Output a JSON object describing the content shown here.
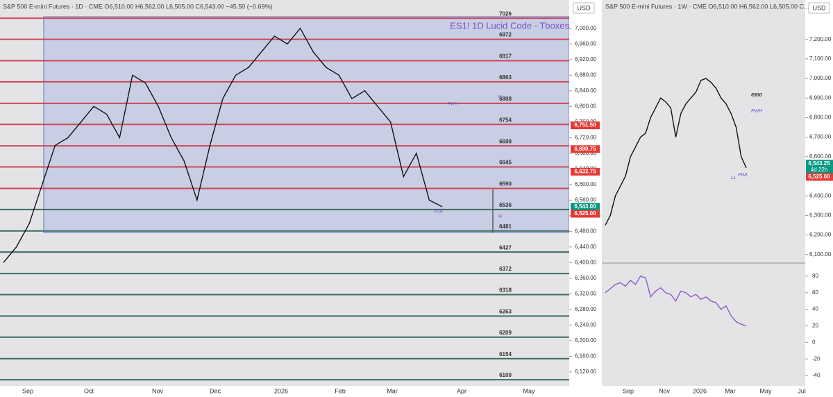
{
  "left": {
    "header": "S&P 500 E-mini Futures · 1D · CME  O6,510.00  H6,562.00  L6,505.00  C6,543.00  −45.50 (−0.69%)",
    "title": "ES1! 1D  Lucid Code - Tboxes",
    "currency": "USD",
    "ylim": [
      6086,
      7037
    ],
    "yticks": [
      {
        "value": 6120,
        "label": "6,120.00"
      },
      {
        "value": 6160,
        "label": "6,160.00"
      },
      {
        "value": 6200,
        "label": "6,200.00"
      },
      {
        "value": 6240,
        "label": "6,240.00"
      },
      {
        "value": 6280,
        "label": "6,280.00"
      },
      {
        "value": 6320,
        "label": "6,320.00"
      },
      {
        "value": 6360,
        "label": "6,360.00"
      },
      {
        "value": 6400,
        "label": "6,400.00"
      },
      {
        "value": 6440,
        "label": "6,440.00"
      },
      {
        "value": 6480,
        "label": "6,480.00"
      },
      {
        "value": 6520,
        "label": "6,520.00"
      },
      {
        "value": 6560,
        "label": "6,560.00"
      },
      {
        "value": 6600,
        "label": "6,600.00"
      },
      {
        "value": 6640,
        "label": "6,640.00"
      },
      {
        "value": 6680,
        "label": "6,680.00"
      },
      {
        "value": 6720,
        "label": "6,720.00"
      },
      {
        "value": 6760,
        "label": "6,760.00"
      },
      {
        "value": 6800,
        "label": "6,800.00"
      },
      {
        "value": 6840,
        "label": "6,840.00"
      },
      {
        "value": 6880,
        "label": "6,880.00"
      },
      {
        "value": 6920,
        "label": "6,920.00"
      },
      {
        "value": 6960,
        "label": "6,960.00"
      },
      {
        "value": 7000,
        "label": "7,000.00"
      }
    ],
    "levels": [
      7026,
      6972,
      6917,
      6863,
      6808,
      6754,
      6699,
      6645,
      6590,
      6536,
      6481,
      6427,
      6372,
      6318,
      6263,
      6209,
      6154,
      6100
    ],
    "badges": [
      {
        "value": 6751.5,
        "label": "6,751.50",
        "color": "#e53935"
      },
      {
        "value": 6690.75,
        "label": "6,690.75",
        "color": "#e53935"
      },
      {
        "value": 6632.75,
        "label": "6,632.75",
        "color": "#e53935"
      },
      {
        "value": 6543,
        "label": "6,543.00",
        "sub": "21:23:44",
        "color": "#089981"
      },
      {
        "value": 6525,
        "label": "6,525.00",
        "color": "#e53935"
      }
    ],
    "time_labels": [
      "Sep",
      "Oct",
      "Nov",
      "Dec",
      "2026",
      "Feb",
      "Mar",
      "Apr",
      "May"
    ],
    "closes": [
      6400,
      6440,
      6500,
      6600,
      6700,
      6720,
      6760,
      6800,
      6780,
      6720,
      6880,
      6860,
      6800,
      6720,
      6660,
      6560,
      6700,
      6820,
      6880,
      6900,
      6940,
      6980,
      6960,
      7000,
      6940,
      6900,
      6880,
      6820,
      6840,
      6800,
      6760,
      6620,
      6680,
      6560,
      6543
    ],
    "annotations": [
      "PDH",
      "PWH",
      "M",
      "W"
    ]
  },
  "right": {
    "header": "S&P 500 E-mini Futures · 1W · CME  O6,510.00  H6,562.00  L6,505.00  C...",
    "currency": "USD",
    "ylim": [
      6060,
      7330
    ],
    "yticks": [
      {
        "value": 6100,
        "label": "6,100.00"
      },
      {
        "value": 6200,
        "label": "6,200.00"
      },
      {
        "value": 6300,
        "label": "6,300.00"
      },
      {
        "value": 6400,
        "label": "6,400.00"
      },
      {
        "value": 6500,
        "label": "6,500.00"
      },
      {
        "value": 6600,
        "label": "6,600.00"
      },
      {
        "value": 6700,
        "label": "6,700.00"
      },
      {
        "value": 6800,
        "label": "6,800.00"
      },
      {
        "value": 6900,
        "label": "6,900.00"
      },
      {
        "value": 7000,
        "label": "7,000.00"
      },
      {
        "value": 7100,
        "label": "7,100.00"
      },
      {
        "value": 7200,
        "label": "7,200.00"
      }
    ],
    "badges": [
      {
        "value": 6543.25,
        "label": "6,543.25",
        "sub": "4d 22h",
        "color": "#089981"
      },
      {
        "value": 6525,
        "label": "6,525.00",
        "color": "#e53935"
      }
    ],
    "closes": [
      6250,
      6300,
      6400,
      6450,
      6500,
      6600,
      6650,
      6700,
      6720,
      6800,
      6850,
      6900,
      6880,
      6850,
      6700,
      6820,
      6870,
      6900,
      6930,
      6990,
      7000,
      6980,
      6950,
      6900,
      6870,
      6820,
      6750,
      6600,
      6543
    ],
    "annotations": [
      "6900",
      "PWH",
      "PWL",
      "LL"
    ],
    "osc_ylim": [
      -50,
      95
    ],
    "osc_ticks": [
      80,
      60,
      40,
      20,
      0,
      -20,
      -40
    ],
    "osc_values": [
      60,
      65,
      70,
      72,
      68,
      75,
      70,
      80,
      78,
      55,
      62,
      66,
      60,
      58,
      50,
      62,
      60,
      55,
      58,
      52,
      55,
      50,
      48,
      40,
      44,
      32,
      25,
      22,
      20
    ],
    "time_labels": [
      "Sep",
      "Nov",
      "2026",
      "Mar",
      "May",
      "Jul"
    ]
  }
}
